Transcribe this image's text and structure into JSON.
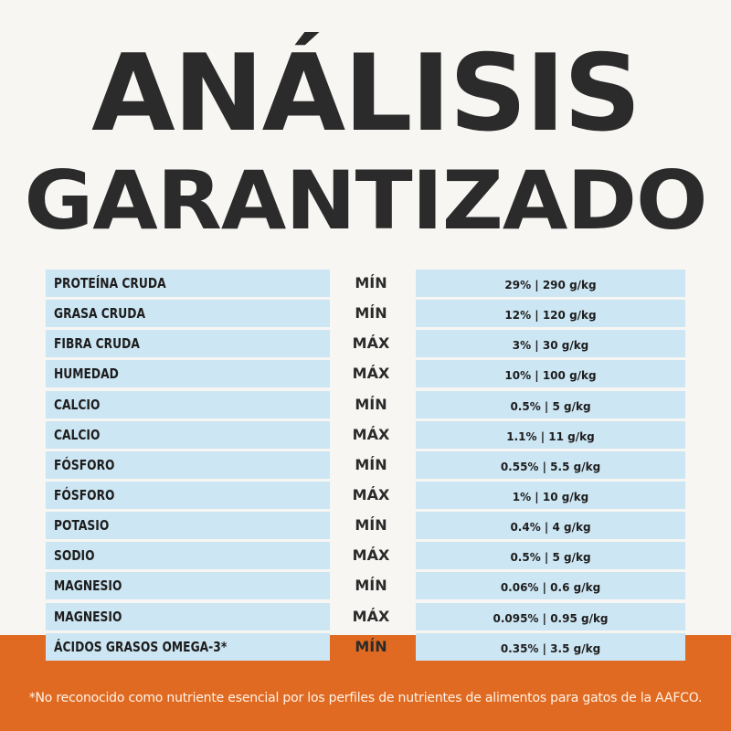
{
  "title": {
    "line1": "ANÁLISIS",
    "line2": "GARANTIZADO"
  },
  "rows": [
    {
      "name": "PROTEÍNA CRUDA",
      "limit": "MÍN",
      "value": "29% | 290 g/kg"
    },
    {
      "name": "GRASA CRUDA",
      "limit": "MÍN",
      "value": "12% | 120 g/kg"
    },
    {
      "name": "FIBRA CRUDA",
      "limit": "MÁX",
      "value": "3% | 30 g/kg"
    },
    {
      "name": "HUMEDAD",
      "limit": "MÁX",
      "value": "10% | 100 g/kg"
    },
    {
      "name": "CALCIO",
      "limit": "MÍN",
      "value": "0.5% | 5 g/kg"
    },
    {
      "name": "CALCIO",
      "limit": "MÁX",
      "value": "1.1% | 11 g/kg"
    },
    {
      "name": "FÓSFORO",
      "limit": "MÍN",
      "value": "0.55% | 5.5 g/kg"
    },
    {
      "name": "FÓSFORO",
      "limit": "MÁX",
      "value": "1% | 10 g/kg"
    },
    {
      "name": "POTASIO",
      "limit": "MÍN",
      "value": "0.4% | 4 g/kg"
    },
    {
      "name": "SODIO",
      "limit": "MÁX",
      "value": "0.5% | 5 g/kg"
    },
    {
      "name": "MAGNESIO",
      "limit": "MÍN",
      "value": "0.06% | 0.6 g/kg"
    },
    {
      "name": "MAGNESIO",
      "limit": "MÁX",
      "value": "0.095% | 0.95 g/kg"
    },
    {
      "name": "ÁCIDOS GRASOS OMEGA-3*",
      "limit": "MÍN",
      "value": "0.35% | 3.5 g/kg"
    }
  ],
  "footnote": "*No reconocido como nutriente esencial por los perfiles de nutrientes de alimentos para gatos de la AAFCO.",
  "colors": {
    "background": "#f7f6f3",
    "title": "#2b2b2b",
    "cell": "#cde6f3",
    "band": "#e06a22"
  }
}
